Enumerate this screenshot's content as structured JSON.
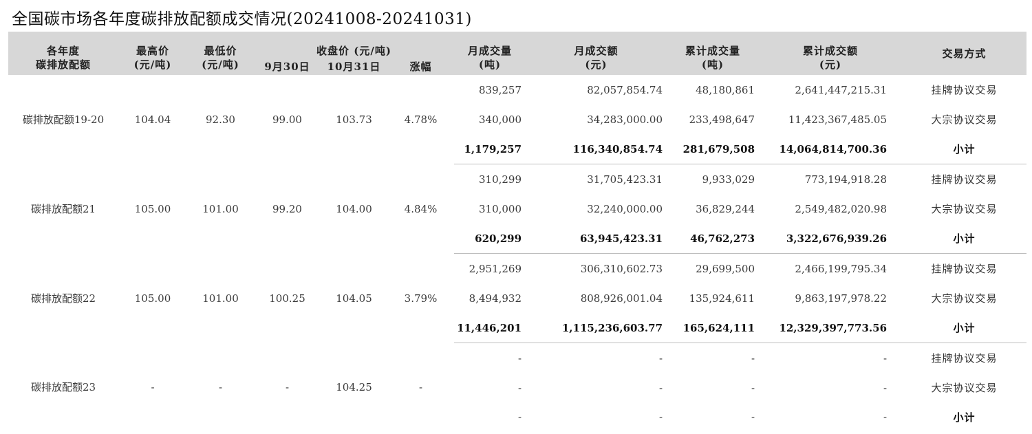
{
  "title": "全国碳市场各年度碳排放配额成交情况(20241008-20241031)",
  "headers": {
    "year_line1": "各年度",
    "year_line2": "碳排放配额",
    "high_line1": "最高价",
    "high_line2": "(元/吨)",
    "low_line1": "最低价",
    "low_line2": "(元/吨)",
    "close_group": "收盘价 (元/吨)",
    "close_sep30": "9月30日",
    "close_oct31": "10月31日",
    "close_change": "涨幅",
    "mvol_line1": "月成交量",
    "mvol_line2": "(吨)",
    "mamt_line1": "月成交额",
    "mamt_line2": "(元)",
    "cvol_line1": "累计成交量",
    "cvol_line2": "(吨)",
    "camt_line1": "累计成交额",
    "camt_line2": "(元)",
    "method": "交易方式"
  },
  "groups": [
    {
      "name": "碳排放配额19-20",
      "high": "104.04",
      "low": "92.30",
      "close_sep30": "99.00",
      "close_oct31": "103.73",
      "change": "4.78%",
      "rows": [
        {
          "month_volume": "839,257",
          "month_amount": "82,057,854.74",
          "cum_volume": "48,180,861",
          "cum_amount": "2,641,447,215.31",
          "method": "挂牌协议交易"
        },
        {
          "month_volume": "340,000",
          "month_amount": "34,283,000.00",
          "cum_volume": "233,498,647",
          "cum_amount": "11,423,367,485.05",
          "method": "大宗协议交易"
        },
        {
          "month_volume": "1,179,257",
          "month_amount": "116,340,854.74",
          "cum_volume": "281,679,508",
          "cum_amount": "14,064,814,700.36",
          "method": "小计"
        }
      ]
    },
    {
      "name": "碳排放配额21",
      "high": "105.00",
      "low": "101.00",
      "close_sep30": "99.20",
      "close_oct31": "104.00",
      "change": "4.84%",
      "rows": [
        {
          "month_volume": "310,299",
          "month_amount": "31,705,423.31",
          "cum_volume": "9,933,029",
          "cum_amount": "773,194,918.28",
          "method": "挂牌协议交易"
        },
        {
          "month_volume": "310,000",
          "month_amount": "32,240,000.00",
          "cum_volume": "36,829,244",
          "cum_amount": "2,549,482,020.98",
          "method": "大宗协议交易"
        },
        {
          "month_volume": "620,299",
          "month_amount": "63,945,423.31",
          "cum_volume": "46,762,273",
          "cum_amount": "3,322,676,939.26",
          "method": "小计"
        }
      ]
    },
    {
      "name": "碳排放配额22",
      "high": "105.00",
      "low": "101.00",
      "close_sep30": "100.25",
      "close_oct31": "104.05",
      "change": "3.79%",
      "rows": [
        {
          "month_volume": "2,951,269",
          "month_amount": "306,310,602.73",
          "cum_volume": "29,699,500",
          "cum_amount": "2,466,199,795.34",
          "method": "挂牌协议交易"
        },
        {
          "month_volume": "8,494,932",
          "month_amount": "808,926,001.04",
          "cum_volume": "135,924,611",
          "cum_amount": "9,863,197,978.22",
          "method": "大宗协议交易"
        },
        {
          "month_volume": "11,446,201",
          "month_amount": "1,115,236,603.77",
          "cum_volume": "165,624,111",
          "cum_amount": "12,329,397,773.56",
          "method": "小计"
        }
      ]
    },
    {
      "name": "碳排放配额23",
      "high": "-",
      "low": "-",
      "close_sep30": "-",
      "close_oct31": "104.25",
      "change": "-",
      "rows": [
        {
          "month_volume": "-",
          "month_amount": "-",
          "cum_volume": "-",
          "cum_amount": "-",
          "method": "挂牌协议交易"
        },
        {
          "month_volume": "-",
          "month_amount": "-",
          "cum_volume": "-",
          "cum_amount": "-",
          "method": "大宗协议交易"
        },
        {
          "month_volume": "-",
          "month_amount": "-",
          "cum_volume": "-",
          "cum_amount": "-",
          "method": "小计"
        }
      ]
    }
  ]
}
